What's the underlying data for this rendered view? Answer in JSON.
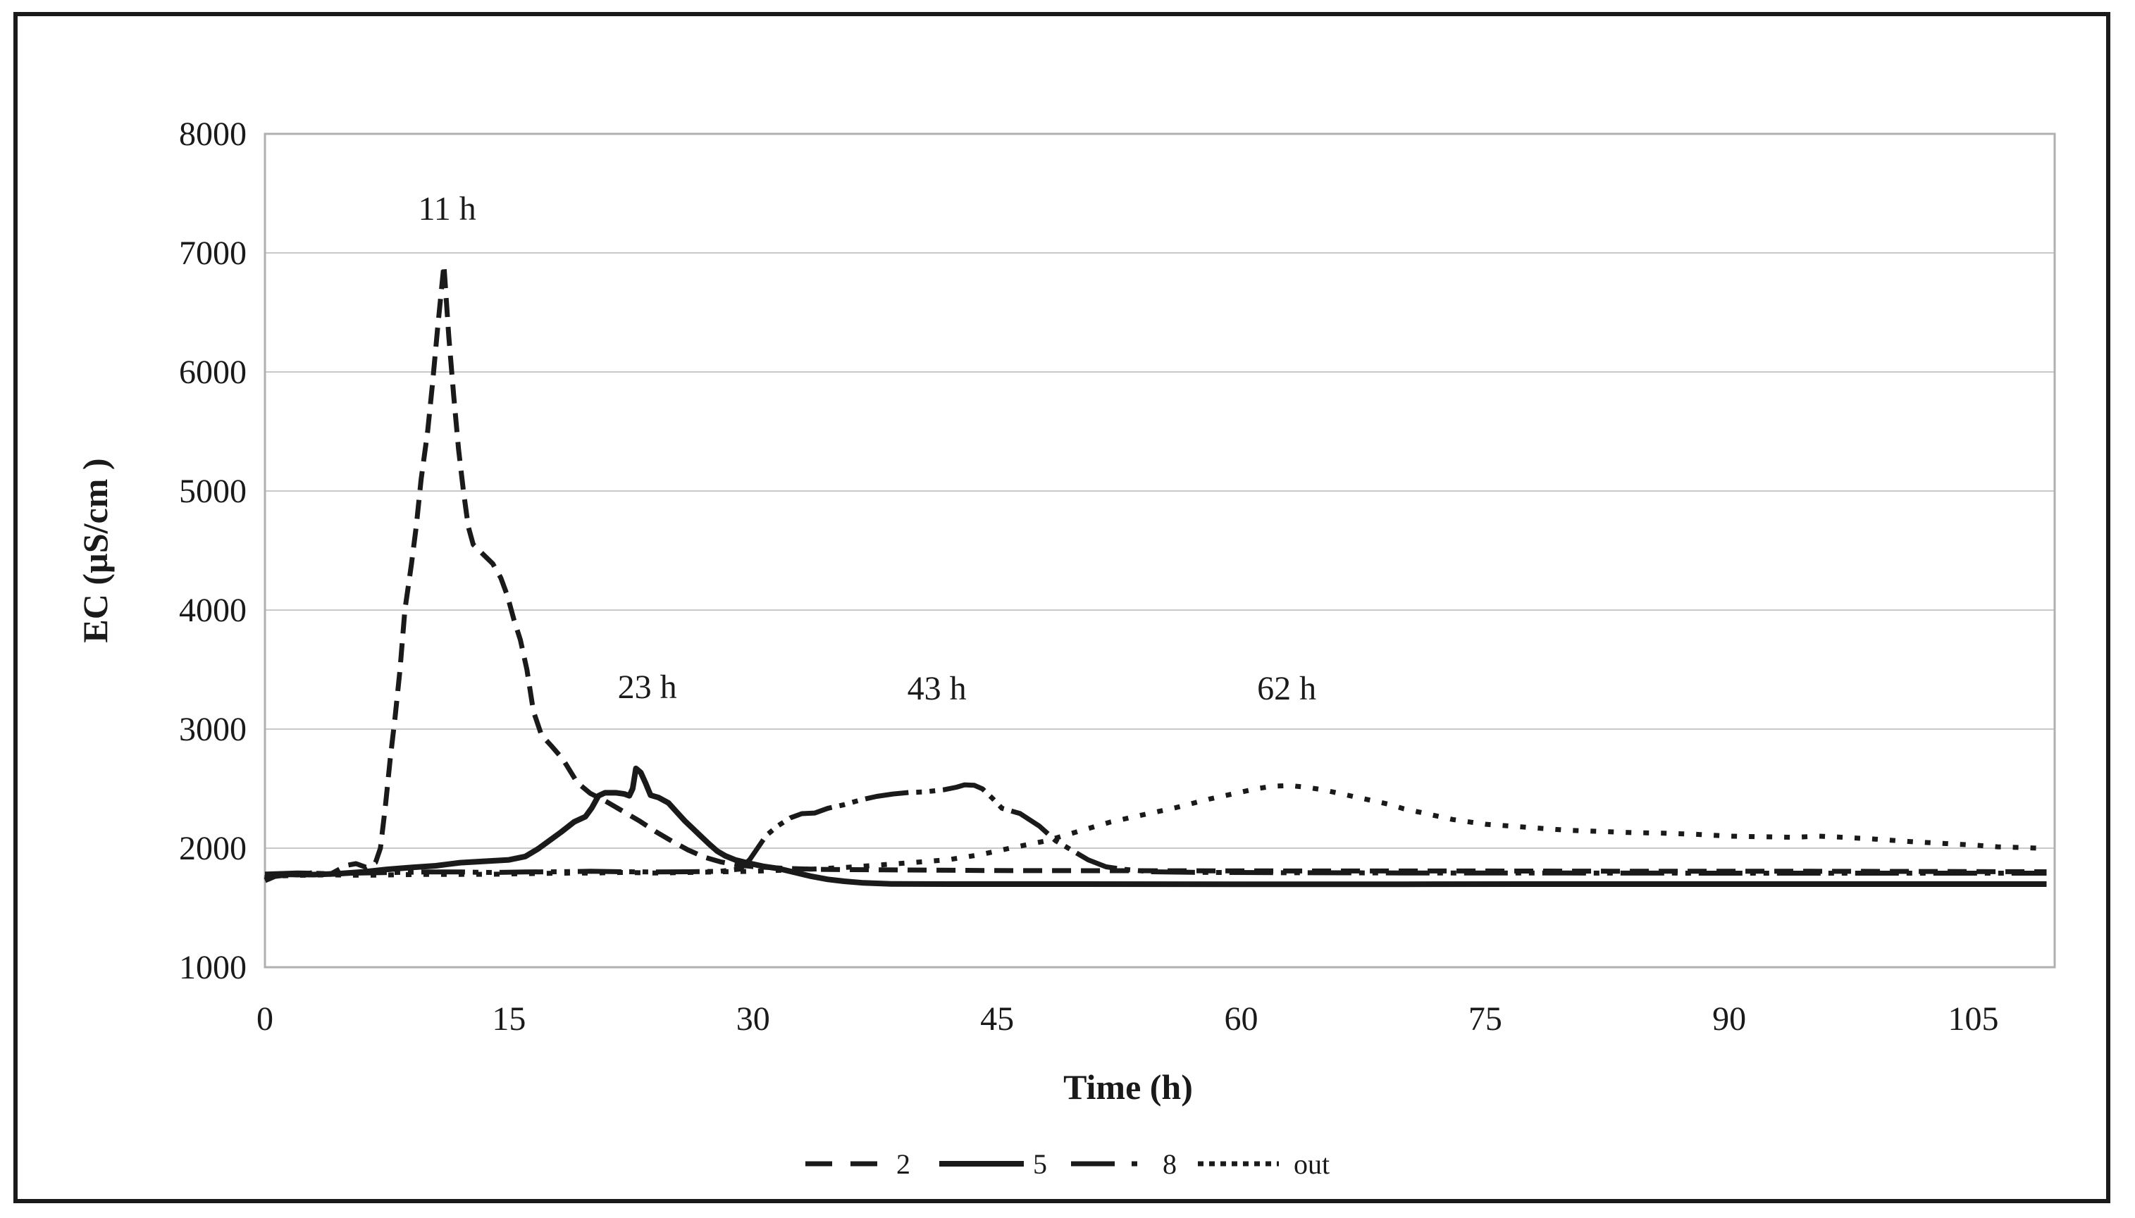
{
  "figure": {
    "background": "#ffffff",
    "border_color": "#1a1a1a",
    "line_color": "#1a1a1a",
    "grid_color": "#c9c9c9",
    "plot_border_color": "#b0b0b0"
  },
  "chart_data": {
    "type": "line",
    "title": "",
    "xlabel": "Time (h)",
    "ylabel": "EC (µS/cm )",
    "xlim": [
      0,
      110
    ],
    "ylim": [
      1000,
      8000
    ],
    "x_ticks": [
      0,
      15,
      30,
      45,
      60,
      75,
      90,
      105
    ],
    "y_ticks": [
      8000,
      7000,
      6000,
      5000,
      4000,
      3000,
      2000,
      1000
    ],
    "grid": "horizontal",
    "legend_position": "bottom",
    "annotations": [
      {
        "text": "11 h",
        "t": 11.2,
        "ec": 7380
      },
      {
        "text": "23 h",
        "t": 23.5,
        "ec": 3360
      },
      {
        "text": "43 h",
        "t": 41.3,
        "ec": 3350
      },
      {
        "text": "62 h",
        "t": 62.8,
        "ec": 3350
      }
    ],
    "series": [
      {
        "name": "2",
        "style": "dashed",
        "points": [
          [
            0,
            1750
          ],
          [
            1,
            1785
          ],
          [
            2,
            1775
          ],
          [
            3,
            1795
          ],
          [
            4,
            1780
          ],
          [
            5,
            1855
          ],
          [
            5.6,
            1870
          ],
          [
            6.2,
            1840
          ],
          [
            6.8,
            1880
          ],
          [
            7.1,
            2000
          ],
          [
            7.4,
            2350
          ],
          [
            7.7,
            2750
          ],
          [
            8,
            3100
          ],
          [
            8.3,
            3500
          ],
          [
            8.6,
            4000
          ],
          [
            9,
            4380
          ],
          [
            9.3,
            4700
          ],
          [
            9.6,
            5100
          ],
          [
            10,
            5500
          ],
          [
            10.3,
            5900
          ],
          [
            10.6,
            6350
          ],
          [
            11,
            6900
          ],
          [
            11.3,
            6300
          ],
          [
            11.6,
            5800
          ],
          [
            11.9,
            5350
          ],
          [
            12.2,
            5000
          ],
          [
            12.5,
            4700
          ],
          [
            12.8,
            4550
          ],
          [
            13.4,
            4470
          ],
          [
            14,
            4390
          ],
          [
            14.5,
            4270
          ],
          [
            14.9,
            4120
          ],
          [
            15.3,
            3920
          ],
          [
            15.7,
            3750
          ],
          [
            16.1,
            3500
          ],
          [
            16.5,
            3150
          ],
          [
            17,
            2950
          ],
          [
            17.6,
            2860
          ],
          [
            18.3,
            2750
          ],
          [
            19.2,
            2550
          ],
          [
            20,
            2460
          ],
          [
            21,
            2390
          ],
          [
            22,
            2310
          ],
          [
            23,
            2230
          ],
          [
            24,
            2140
          ],
          [
            25,
            2060
          ],
          [
            26,
            1985
          ],
          [
            27,
            1925
          ],
          [
            28,
            1885
          ],
          [
            29,
            1860
          ],
          [
            30,
            1845
          ],
          [
            32,
            1830
          ],
          [
            34,
            1822
          ],
          [
            38,
            1818
          ],
          [
            45,
            1812
          ],
          [
            55,
            1810
          ],
          [
            65,
            1808
          ],
          [
            75,
            1808
          ],
          [
            85,
            1806
          ],
          [
            95,
            1806
          ],
          [
            102,
            1804
          ],
          [
            109.5,
            1802
          ]
        ]
      },
      {
        "name": "5",
        "style": "solid",
        "points": [
          [
            0,
            1730
          ],
          [
            0.6,
            1765
          ],
          [
            1.5,
            1780
          ],
          [
            3,
            1778
          ],
          [
            4.5,
            1785
          ],
          [
            6,
            1800
          ],
          [
            7.5,
            1822
          ],
          [
            9,
            1838
          ],
          [
            10.5,
            1852
          ],
          [
            12,
            1878
          ],
          [
            13.5,
            1890
          ],
          [
            15,
            1902
          ],
          [
            16,
            1930
          ],
          [
            16.8,
            1995
          ],
          [
            17.5,
            2065
          ],
          [
            18.2,
            2135
          ],
          [
            19,
            2220
          ],
          [
            19.7,
            2265
          ],
          [
            20.1,
            2340
          ],
          [
            20.5,
            2440
          ],
          [
            20.9,
            2465
          ],
          [
            21.6,
            2465
          ],
          [
            22.1,
            2455
          ],
          [
            22.4,
            2440
          ],
          [
            22.6,
            2500
          ],
          [
            22.8,
            2670
          ],
          [
            23.1,
            2635
          ],
          [
            23.4,
            2545
          ],
          [
            23.7,
            2445
          ],
          [
            24.2,
            2425
          ],
          [
            24.8,
            2380
          ],
          [
            25.3,
            2305
          ],
          [
            25.8,
            2230
          ],
          [
            26.3,
            2165
          ],
          [
            26.8,
            2100
          ],
          [
            27.3,
            2035
          ],
          [
            27.8,
            1975
          ],
          [
            28.3,
            1935
          ],
          [
            28.9,
            1902
          ],
          [
            29.6,
            1878
          ],
          [
            30.6,
            1848
          ],
          [
            31.6,
            1828
          ],
          [
            32.6,
            1795
          ],
          [
            33.6,
            1763
          ],
          [
            34.6,
            1738
          ],
          [
            35.6,
            1722
          ],
          [
            36.8,
            1708
          ],
          [
            38.5,
            1700
          ],
          [
            42,
            1698
          ],
          [
            50,
            1698
          ],
          [
            60,
            1697
          ],
          [
            70,
            1697
          ],
          [
            80,
            1698
          ],
          [
            90,
            1698
          ],
          [
            100,
            1698
          ],
          [
            109.5,
            1698
          ]
        ]
      },
      {
        "name": "8",
        "style": "dashdot",
        "points": [
          [
            0,
            1782
          ],
          [
            2,
            1792
          ],
          [
            4,
            1786
          ],
          [
            6,
            1792
          ],
          [
            8,
            1796
          ],
          [
            10,
            1800
          ],
          [
            12,
            1800
          ],
          [
            14,
            1796
          ],
          [
            16,
            1800
          ],
          [
            18,
            1802
          ],
          [
            20,
            1806
          ],
          [
            22,
            1802
          ],
          [
            24,
            1800
          ],
          [
            26,
            1802
          ],
          [
            28,
            1806
          ],
          [
            29.2,
            1825
          ],
          [
            29.8,
            1905
          ],
          [
            30.3,
            2005
          ],
          [
            30.8,
            2105
          ],
          [
            31.5,
            2185
          ],
          [
            32.3,
            2255
          ],
          [
            33,
            2290
          ],
          [
            33.8,
            2295
          ],
          [
            34.6,
            2335
          ],
          [
            35.6,
            2365
          ],
          [
            36.6,
            2405
          ],
          [
            37.6,
            2435
          ],
          [
            38.6,
            2455
          ],
          [
            39.6,
            2468
          ],
          [
            40.5,
            2472
          ],
          [
            41.7,
            2490
          ],
          [
            42.5,
            2512
          ],
          [
            43,
            2532
          ],
          [
            43.6,
            2528
          ],
          [
            44.1,
            2498
          ],
          [
            44.7,
            2420
          ],
          [
            45.3,
            2335
          ],
          [
            46.4,
            2292
          ],
          [
            47.6,
            2185
          ],
          [
            48.6,
            2062
          ],
          [
            49.6,
            1982
          ],
          [
            50.6,
            1902
          ],
          [
            51.7,
            1843
          ],
          [
            52.8,
            1822
          ],
          [
            54.5,
            1802
          ],
          [
            57,
            1797
          ],
          [
            62,
            1794
          ],
          [
            70,
            1792
          ],
          [
            80,
            1791
          ],
          [
            90,
            1790
          ],
          [
            100,
            1790
          ],
          [
            109.5,
            1790
          ]
        ]
      },
      {
        "name": "out",
        "style": "dotted",
        "points": [
          [
            0,
            1762
          ],
          [
            2,
            1772
          ],
          [
            4,
            1776
          ],
          [
            6,
            1772
          ],
          [
            8,
            1776
          ],
          [
            10,
            1780
          ],
          [
            12,
            1780
          ],
          [
            14,
            1781
          ],
          [
            16,
            1786
          ],
          [
            18,
            1790
          ],
          [
            20,
            1791
          ],
          [
            22,
            1796
          ],
          [
            24,
            1791
          ],
          [
            26,
            1796
          ],
          [
            28,
            1801
          ],
          [
            30,
            1806
          ],
          [
            32,
            1816
          ],
          [
            34,
            1826
          ],
          [
            36,
            1841
          ],
          [
            38,
            1861
          ],
          [
            40,
            1881
          ],
          [
            42,
            1903
          ],
          [
            44,
            1946
          ],
          [
            46,
            2006
          ],
          [
            48,
            2061
          ],
          [
            50,
            2141
          ],
          [
            52,
            2221
          ],
          [
            54,
            2281
          ],
          [
            56,
            2341
          ],
          [
            58,
            2411
          ],
          [
            60,
            2471
          ],
          [
            61,
            2501
          ],
          [
            62,
            2521
          ],
          [
            63,
            2526
          ],
          [
            64,
            2511
          ],
          [
            65,
            2491
          ],
          [
            66,
            2461
          ],
          [
            67,
            2431
          ],
          [
            68,
            2401
          ],
          [
            69,
            2371
          ],
          [
            70,
            2331
          ],
          [
            71,
            2301
          ],
          [
            72,
            2271
          ],
          [
            73,
            2241
          ],
          [
            74,
            2221
          ],
          [
            75,
            2201
          ],
          [
            76,
            2191
          ],
          [
            77,
            2181
          ],
          [
            78,
            2171
          ],
          [
            80,
            2151
          ],
          [
            82,
            2141
          ],
          [
            84,
            2131
          ],
          [
            86,
            2126
          ],
          [
            88,
            2116
          ],
          [
            90,
            2101
          ],
          [
            92,
            2096
          ],
          [
            94,
            2091
          ],
          [
            95.5,
            2101
          ],
          [
            97,
            2091
          ],
          [
            99,
            2076
          ],
          [
            101,
            2056
          ],
          [
            103,
            2041
          ],
          [
            105,
            2026
          ],
          [
            106.5,
            2011
          ],
          [
            109.5,
            1998
          ]
        ]
      }
    ]
  },
  "legend": {
    "items": [
      {
        "label": "2",
        "style": "dashed"
      },
      {
        "label": "5",
        "style": "solid"
      },
      {
        "label": "8",
        "style": "dashdot"
      },
      {
        "label": "out",
        "style": "dotted"
      }
    ]
  }
}
